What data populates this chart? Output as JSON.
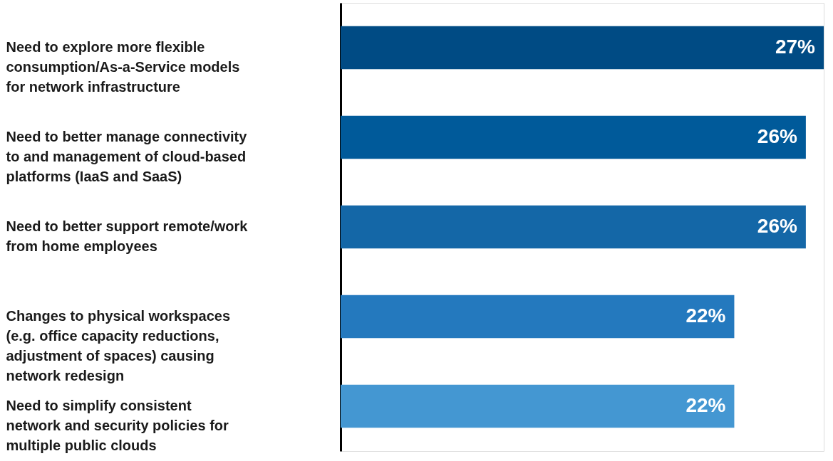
{
  "chart_data": {
    "type": "bar",
    "orientation": "horizontal",
    "categories": [
      "Need to explore more flexible consumption/As-a-Service models for network infrastructure",
      "Need to better manage connectivity to and management of cloud-based platforms (IaaS and SaaS)",
      "Need to better support remote/work from home employees",
      "Changes to physical workspaces (e.g. office capacity reductions, adjustment of spaces) causing network redesign",
      "Need to simplify consistent network and security policies for multiple public clouds"
    ],
    "values": [
      27,
      26,
      26,
      22,
      22
    ],
    "value_labels": [
      "27%",
      "26%",
      "26%",
      "22%",
      "22%"
    ],
    "colors": [
      "#004b84",
      "#005a9a",
      "#1467a7",
      "#2479be",
      "#4497d2"
    ]
  }
}
